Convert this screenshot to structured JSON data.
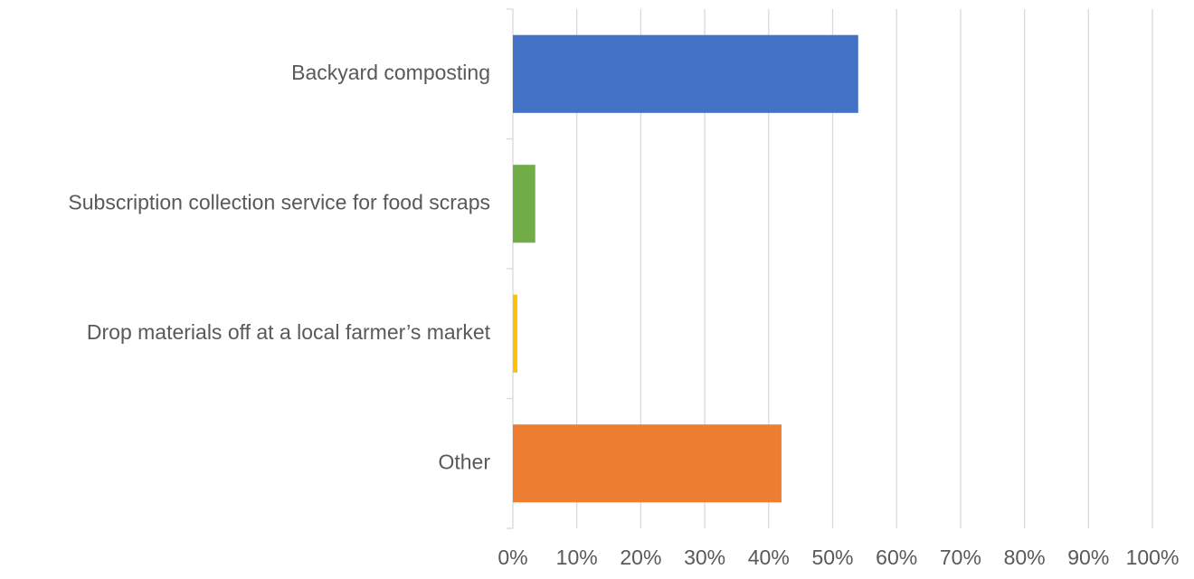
{
  "chart_data": {
    "type": "bar",
    "orientation": "horizontal",
    "title": "",
    "xlabel": "",
    "ylabel": "",
    "categories": [
      "Backyard composting",
      "Subscription collection service for food scraps",
      "Drop materials off at a local farmer’s market",
      "Other"
    ],
    "values": [
      54,
      3.5,
      0.7,
      42
    ],
    "colors": [
      "#4472C4",
      "#70AD47",
      "#FFC000",
      "#ED7D31"
    ],
    "xlim": [
      0,
      100
    ],
    "x_ticks": [
      0,
      10,
      20,
      30,
      40,
      50,
      60,
      70,
      80,
      90,
      100
    ],
    "x_tick_labels": [
      "0%",
      "10%",
      "20%",
      "30%",
      "40%",
      "50%",
      "60%",
      "70%",
      "80%",
      "90%",
      "100%"
    ],
    "grid": true,
    "legend": "none",
    "gridline_color": "#D9D9D9",
    "text_color": "#595959"
  }
}
